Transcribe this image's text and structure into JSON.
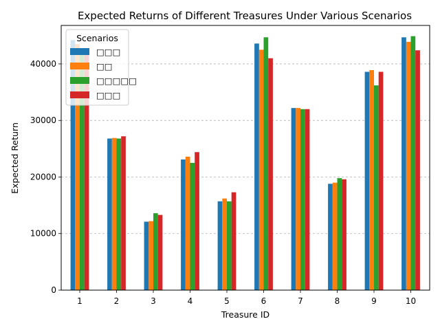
{
  "chart_data": {
    "type": "bar",
    "title": "Expected Returns of Different Treasures Under Various Scenarios",
    "xlabel": "Treasure ID",
    "ylabel": "Expected Return",
    "categories": [
      "1",
      "2",
      "3",
      "4",
      "5",
      "6",
      "7",
      "8",
      "9",
      "10"
    ],
    "ylim": [
      0,
      46800
    ],
    "yticks": [
      0,
      10000,
      20000,
      30000,
      40000
    ],
    "grid": "y-dashed",
    "legend": {
      "title": "Scenarios",
      "placement": "top-left"
    },
    "series": [
      {
        "name": "□□□",
        "color": "#1f77b4",
        "values": [
          44200,
          26800,
          12100,
          23100,
          15700,
          43600,
          32200,
          18800,
          38600,
          44700
        ]
      },
      {
        "name": "□□",
        "color": "#ff7f0e",
        "values": [
          43500,
          26900,
          12200,
          23600,
          16200,
          42500,
          32200,
          19000,
          38900,
          43900
        ]
      },
      {
        "name": "□□□□□",
        "color": "#2ca02c",
        "values": [
          42000,
          26800,
          13600,
          22500,
          15700,
          44700,
          32000,
          19800,
          36200,
          44900
        ]
      },
      {
        "name": "□□□",
        "color": "#d62728",
        "values": [
          42800,
          27200,
          13300,
          24400,
          17300,
          41000,
          32000,
          19600,
          38600,
          42400
        ]
      }
    ]
  }
}
